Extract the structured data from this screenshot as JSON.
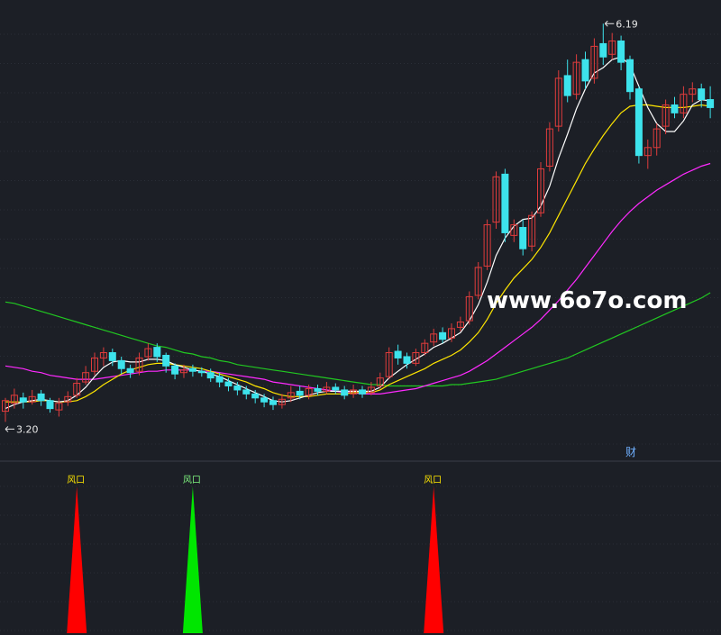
{
  "watermark": "www.6o7o.com",
  "indicator_tag": "财",
  "colors": {
    "background": "#1c1f26",
    "grid": "#2a2e37",
    "up": "#e03c3c",
    "down": "#3de3ec",
    "ma_short": "#ffffff",
    "ma_mid": "#ffe600",
    "ma_long": "#ff2aff",
    "ma_longest": "#21c821",
    "signal_red": "#ff0000",
    "signal_green": "#00e600"
  },
  "chart_data": [
    {
      "type": "candlestick",
      "price_range": [
        3.0,
        6.3
      ],
      "high_annotation": {
        "label": "6.19",
        "value": 6.19,
        "index": 67
      },
      "low_annotation": {
        "label": "3.20",
        "value": 3.2,
        "index": 0
      },
      "candles": [
        [
          3.28,
          3.36,
          3.38,
          3.2
        ],
        [
          3.34,
          3.4,
          3.45,
          3.3
        ],
        [
          3.38,
          3.35,
          3.42,
          3.3
        ],
        [
          3.35,
          3.39,
          3.44,
          3.33
        ],
        [
          3.41,
          3.36,
          3.44,
          3.32
        ],
        [
          3.36,
          3.3,
          3.38,
          3.27
        ],
        [
          3.29,
          3.34,
          3.38,
          3.24
        ],
        [
          3.35,
          3.39,
          3.43,
          3.32
        ],
        [
          3.4,
          3.49,
          3.53,
          3.38
        ],
        [
          3.5,
          3.57,
          3.62,
          3.48
        ],
        [
          3.58,
          3.68,
          3.72,
          3.55
        ],
        [
          3.68,
          3.72,
          3.76,
          3.62
        ],
        [
          3.72,
          3.66,
          3.75,
          3.62
        ],
        [
          3.66,
          3.6,
          3.69,
          3.56
        ],
        [
          3.6,
          3.57,
          3.63,
          3.53
        ],
        [
          3.58,
          3.68,
          3.72,
          3.55
        ],
        [
          3.69,
          3.75,
          3.79,
          3.66
        ],
        [
          3.76,
          3.69,
          3.79,
          3.65
        ],
        [
          3.7,
          3.62,
          3.72,
          3.57
        ],
        [
          3.62,
          3.56,
          3.64,
          3.52
        ],
        [
          3.57,
          3.59,
          3.63,
          3.53
        ],
        [
          3.6,
          3.58,
          3.63,
          3.54
        ],
        [
          3.58,
          3.57,
          3.61,
          3.54
        ],
        [
          3.57,
          3.53,
          3.6,
          3.5
        ],
        [
          3.54,
          3.5,
          3.57,
          3.46
        ],
        [
          3.5,
          3.47,
          3.53,
          3.43
        ],
        [
          3.47,
          3.44,
          3.5,
          3.4
        ],
        [
          3.44,
          3.41,
          3.47,
          3.37
        ],
        [
          3.41,
          3.38,
          3.44,
          3.34
        ],
        [
          3.38,
          3.35,
          3.41,
          3.31
        ],
        [
          3.36,
          3.33,
          3.39,
          3.29
        ],
        [
          3.33,
          3.37,
          3.41,
          3.3
        ],
        [
          3.38,
          3.42,
          3.47,
          3.35
        ],
        [
          3.43,
          3.4,
          3.47,
          3.37
        ],
        [
          3.4,
          3.45,
          3.48,
          3.37
        ],
        [
          3.45,
          3.43,
          3.48,
          3.4
        ],
        [
          3.43,
          3.46,
          3.5,
          3.41
        ],
        [
          3.46,
          3.44,
          3.49,
          3.41
        ],
        [
          3.44,
          3.4,
          3.47,
          3.37
        ],
        [
          3.41,
          3.44,
          3.48,
          3.38
        ],
        [
          3.44,
          3.41,
          3.47,
          3.38
        ],
        [
          3.42,
          3.46,
          3.5,
          3.4
        ],
        [
          3.47,
          3.53,
          3.57,
          3.45
        ],
        [
          3.54,
          3.72,
          3.76,
          3.52
        ],
        [
          3.73,
          3.68,
          3.78,
          3.63
        ],
        [
          3.69,
          3.64,
          3.72,
          3.6
        ],
        [
          3.64,
          3.72,
          3.75,
          3.62
        ],
        [
          3.72,
          3.79,
          3.82,
          3.7
        ],
        [
          3.8,
          3.86,
          3.9,
          3.77
        ],
        [
          3.87,
          3.82,
          3.91,
          3.79
        ],
        [
          3.83,
          3.9,
          3.94,
          3.8
        ],
        [
          3.91,
          3.95,
          3.99,
          3.88
        ],
        [
          3.96,
          4.14,
          4.18,
          3.93
        ],
        [
          4.15,
          4.36,
          4.4,
          4.12
        ],
        [
          4.37,
          4.68,
          4.72,
          4.34
        ],
        [
          4.7,
          5.04,
          5.08,
          4.65
        ],
        [
          5.06,
          4.62,
          5.1,
          4.55
        ],
        [
          4.6,
          4.68,
          4.72,
          4.55
        ],
        [
          4.66,
          4.5,
          4.72,
          4.45
        ],
        [
          4.52,
          4.75,
          4.78,
          4.48
        ],
        [
          4.77,
          5.1,
          5.15,
          4.74
        ],
        [
          5.12,
          5.4,
          5.45,
          5.08
        ],
        [
          5.42,
          5.78,
          5.84,
          5.38
        ],
        [
          5.8,
          5.65,
          5.92,
          5.6
        ],
        [
          5.66,
          5.9,
          5.96,
          5.62
        ],
        [
          5.92,
          5.76,
          5.98,
          5.7
        ],
        [
          5.78,
          6.02,
          6.08,
          5.74
        ],
        [
          6.04,
          5.94,
          6.19,
          5.88
        ],
        [
          5.96,
          6.06,
          6.12,
          5.92
        ],
        [
          6.06,
          5.9,
          6.1,
          5.84
        ],
        [
          5.92,
          5.68,
          5.95,
          5.62
        ],
        [
          5.7,
          5.2,
          5.72,
          5.14
        ],
        [
          5.2,
          5.26,
          5.32,
          5.1
        ],
        [
          5.26,
          5.4,
          5.44,
          5.2
        ],
        [
          5.42,
          5.58,
          5.62,
          5.36
        ],
        [
          5.58,
          5.52,
          5.64,
          5.48
        ],
        [
          5.52,
          5.66,
          5.72,
          5.48
        ],
        [
          5.66,
          5.7,
          5.75,
          5.6
        ],
        [
          5.7,
          5.62,
          5.74,
          5.56
        ],
        [
          5.62,
          5.56,
          5.72,
          5.48
        ]
      ],
      "ma_short_line": [
        3.3,
        3.33,
        3.35,
        3.36,
        3.37,
        3.36,
        3.35,
        3.36,
        3.4,
        3.46,
        3.54,
        3.61,
        3.65,
        3.66,
        3.65,
        3.65,
        3.67,
        3.67,
        3.66,
        3.63,
        3.61,
        3.59,
        3.58,
        3.56,
        3.54,
        3.51,
        3.48,
        3.45,
        3.42,
        3.39,
        3.36,
        3.35,
        3.36,
        3.38,
        3.4,
        3.42,
        3.43,
        3.43,
        3.43,
        3.43,
        3.43,
        3.43,
        3.46,
        3.53,
        3.58,
        3.63,
        3.67,
        3.71,
        3.76,
        3.79,
        3.83,
        3.87,
        3.96,
        4.08,
        4.25,
        4.45,
        4.58,
        4.67,
        4.72,
        4.73,
        4.82,
        4.97,
        5.18,
        5.36,
        5.55,
        5.7,
        5.82,
        5.86,
        5.92,
        5.94,
        5.88,
        5.72,
        5.56,
        5.44,
        5.38,
        5.38,
        5.46,
        5.58,
        5.62,
        5.61
      ],
      "ma_mid_line": [
        3.35,
        3.35,
        3.35,
        3.35,
        3.36,
        3.36,
        3.35,
        3.35,
        3.36,
        3.39,
        3.43,
        3.48,
        3.52,
        3.56,
        3.59,
        3.61,
        3.63,
        3.64,
        3.64,
        3.63,
        3.62,
        3.61,
        3.6,
        3.58,
        3.56,
        3.54,
        3.52,
        3.5,
        3.47,
        3.45,
        3.42,
        3.4,
        3.39,
        3.39,
        3.39,
        3.4,
        3.41,
        3.41,
        3.41,
        3.42,
        3.42,
        3.42,
        3.44,
        3.48,
        3.51,
        3.54,
        3.57,
        3.6,
        3.64,
        3.67,
        3.7,
        3.74,
        3.8,
        3.87,
        3.97,
        4.09,
        4.19,
        4.28,
        4.35,
        4.42,
        4.51,
        4.62,
        4.75,
        4.88,
        5.01,
        5.14,
        5.25,
        5.35,
        5.44,
        5.52,
        5.57,
        5.58,
        5.58,
        5.57,
        5.56,
        5.56,
        5.56,
        5.57,
        5.58,
        5.57
      ],
      "ma_long_line": [
        3.62,
        3.61,
        3.6,
        3.58,
        3.57,
        3.55,
        3.54,
        3.53,
        3.52,
        3.52,
        3.52,
        3.53,
        3.54,
        3.55,
        3.56,
        3.57,
        3.58,
        3.58,
        3.59,
        3.59,
        3.59,
        3.59,
        3.58,
        3.58,
        3.57,
        3.56,
        3.55,
        3.54,
        3.53,
        3.52,
        3.5,
        3.49,
        3.48,
        3.47,
        3.46,
        3.45,
        3.44,
        3.43,
        3.42,
        3.42,
        3.41,
        3.41,
        3.41,
        3.42,
        3.43,
        3.44,
        3.45,
        3.47,
        3.49,
        3.51,
        3.53,
        3.55,
        3.58,
        3.62,
        3.66,
        3.71,
        3.76,
        3.81,
        3.86,
        3.91,
        3.97,
        4.04,
        4.11,
        4.19,
        4.27,
        4.36,
        4.45,
        4.54,
        4.63,
        4.71,
        4.78,
        4.84,
        4.89,
        4.94,
        4.98,
        5.02,
        5.06,
        5.09,
        5.12,
        5.14
      ],
      "ma_longest_line": [
        4.1,
        4.09,
        4.07,
        4.05,
        4.03,
        4.01,
        3.99,
        3.97,
        3.95,
        3.93,
        3.91,
        3.89,
        3.87,
        3.85,
        3.83,
        3.81,
        3.79,
        3.77,
        3.76,
        3.74,
        3.72,
        3.71,
        3.69,
        3.68,
        3.66,
        3.65,
        3.63,
        3.62,
        3.61,
        3.6,
        3.59,
        3.58,
        3.57,
        3.56,
        3.55,
        3.54,
        3.53,
        3.52,
        3.51,
        3.5,
        3.49,
        3.48,
        3.48,
        3.47,
        3.47,
        3.47,
        3.47,
        3.47,
        3.47,
        3.47,
        3.48,
        3.48,
        3.49,
        3.5,
        3.51,
        3.52,
        3.54,
        3.56,
        3.58,
        3.6,
        3.62,
        3.64,
        3.66,
        3.68,
        3.71,
        3.74,
        3.77,
        3.8,
        3.83,
        3.86,
        3.89,
        3.92,
        3.95,
        3.98,
        4.01,
        4.04,
        4.07,
        4.1,
        4.13,
        4.17
      ]
    },
    {
      "type": "signal",
      "signals": [
        {
          "label": "风口",
          "index": 8,
          "color": "red"
        },
        {
          "label": "风口",
          "index": 21,
          "color": "green"
        },
        {
          "label": "风口",
          "index": 48,
          "color": "red"
        }
      ]
    }
  ]
}
